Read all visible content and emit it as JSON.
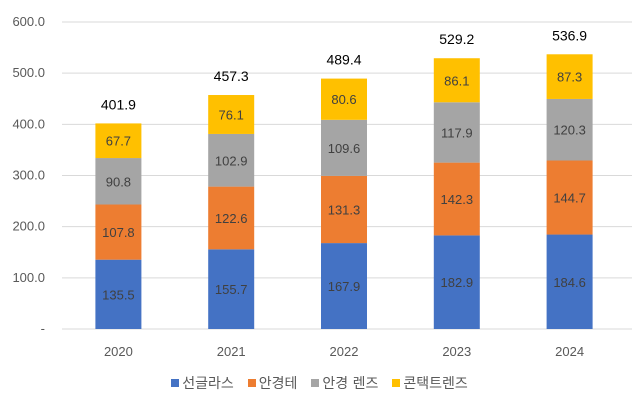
{
  "chart_data": {
    "type": "stacked-bar",
    "categories": [
      "2020",
      "2021",
      "2022",
      "2023",
      "2024"
    ],
    "series": [
      {
        "name": "선글라스",
        "color": "#4472C4",
        "values": [
          135.5,
          155.7,
          167.9,
          182.9,
          184.6
        ]
      },
      {
        "name": "안경테",
        "color": "#ED7D31",
        "values": [
          107.8,
          122.6,
          131.3,
          142.3,
          144.7
        ]
      },
      {
        "name": "안경 렌즈",
        "color": "#A5A5A5",
        "values": [
          90.8,
          102.9,
          109.6,
          117.9,
          120.3
        ]
      },
      {
        "name": "콘택트렌즈",
        "color": "#FFC000",
        "values": [
          67.7,
          76.1,
          80.6,
          86.1,
          87.3
        ]
      }
    ],
    "totals": [
      401.9,
      457.3,
      489.4,
      529.2,
      536.9
    ],
    "yticks": [
      "-",
      "100.0",
      "200.0",
      "300.0",
      "400.0",
      "500.0",
      "600.0"
    ],
    "ylim": [
      0,
      600
    ],
    "grid": true,
    "legend": "bottom"
  }
}
